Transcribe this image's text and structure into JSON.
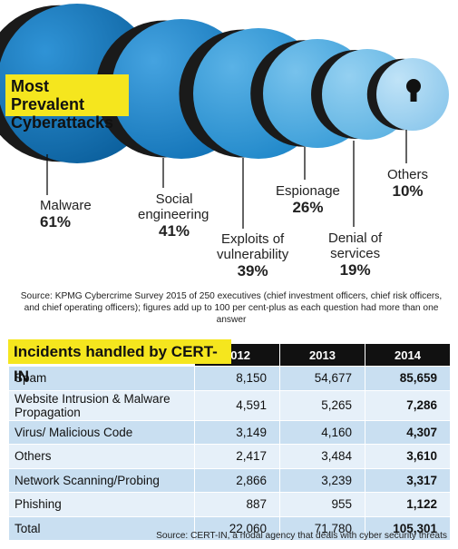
{
  "title": [
    "Most Prevalent",
    "Cyberattacks"
  ],
  "chart_data": {
    "type": "bubble",
    "title": "Most Prevalent Cyberattacks",
    "categories": [
      "Malware",
      "Social engineering",
      "Exploits of vulnerability",
      "Espionage",
      "Denial of services",
      "Others"
    ],
    "values": [
      61,
      41,
      39,
      26,
      19,
      10
    ],
    "unit": "%"
  },
  "labels": [
    {
      "lines": [
        "Malware"
      ],
      "pct": "61%"
    },
    {
      "lines": [
        "Social",
        "engineering"
      ],
      "pct": "41%"
    },
    {
      "lines": [
        "Exploits of",
        "vulnerability"
      ],
      "pct": "39%"
    },
    {
      "lines": [
        "Espionage"
      ],
      "pct": "26%"
    },
    {
      "lines": [
        "Denial of",
        "services"
      ],
      "pct": "19%"
    },
    {
      "lines": [
        "Others"
      ],
      "pct": "10%"
    }
  ],
  "survey_source": "Source: KPMG Cybercrime Survey 2015 of 250 executives (chief investment officers, chief risk officers, and chief operating officers); figures add up to 100 per cent-plus as each question had more than one answer",
  "table": {
    "title": "Incidents handled by CERT-IN",
    "columns": [
      "2012",
      "2013",
      "2014"
    ],
    "rows": [
      {
        "label": "Spam",
        "values": [
          "8,150",
          "54,677",
          "85,659"
        ]
      },
      {
        "label": "Website Intrusion & Malware Propagation",
        "values": [
          "4,591",
          "5,265",
          "7,286"
        ]
      },
      {
        "label": "Virus/ Malicious Code",
        "values": [
          "3,149",
          "4,160",
          "4,307"
        ]
      },
      {
        "label": "Others",
        "values": [
          "2,417",
          "3,484",
          "3,610"
        ]
      },
      {
        "label": "Network Scanning/Probing",
        "values": [
          "2,866",
          "3,239",
          "3,317"
        ]
      },
      {
        "label": "Phishing",
        "values": [
          "887",
          "955",
          "1,122"
        ]
      },
      {
        "label": "Total",
        "values": [
          "22,060",
          "71,780",
          "105,301"
        ]
      }
    ]
  },
  "table_source": "Source: CERT-IN, a nodal agency that deals with cyber security threats",
  "colors": {
    "bubble_dark": "#0b5f9c",
    "bubble_light": "#a8d4f0",
    "shadow": "#1a1a1a",
    "highlight": "#f5e61e",
    "row_even": "#c9dff1",
    "row_odd": "#e6f0f9"
  }
}
